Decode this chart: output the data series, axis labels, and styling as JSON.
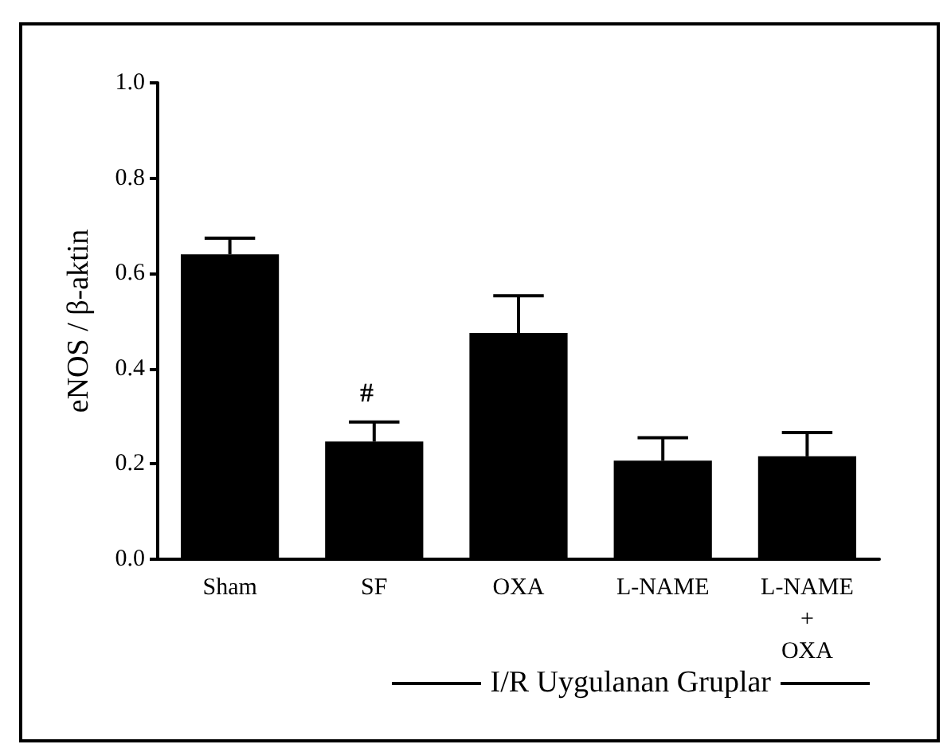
{
  "chart_data": {
    "type": "bar",
    "ylabel": "eNOS / β-aktin",
    "xlabel": "I/R Uygulanan Gruplar",
    "categories": [
      "Sham",
      "SF",
      "OXA",
      "L-NAME",
      "L-NAME\n+\nOXA"
    ],
    "values": [
      0.64,
      0.247,
      0.475,
      0.207,
      0.216
    ],
    "errors": [
      [
        0.64,
        0.674
      ],
      [
        0.247,
        0.288
      ],
      [
        0.475,
        0.553
      ],
      [
        0.207,
        0.255
      ],
      [
        0.216,
        0.266
      ]
    ],
    "color": "#000000",
    "ylim": [
      0,
      1
    ],
    "yticks": [
      {
        "value": 0,
        "label": "0.0"
      },
      0.2,
      0.4,
      0.6,
      0.8,
      {
        "value": 1,
        "label": "1.0"
      }
    ],
    "annotations": [
      "#"
    ],
    "grid": false
  }
}
